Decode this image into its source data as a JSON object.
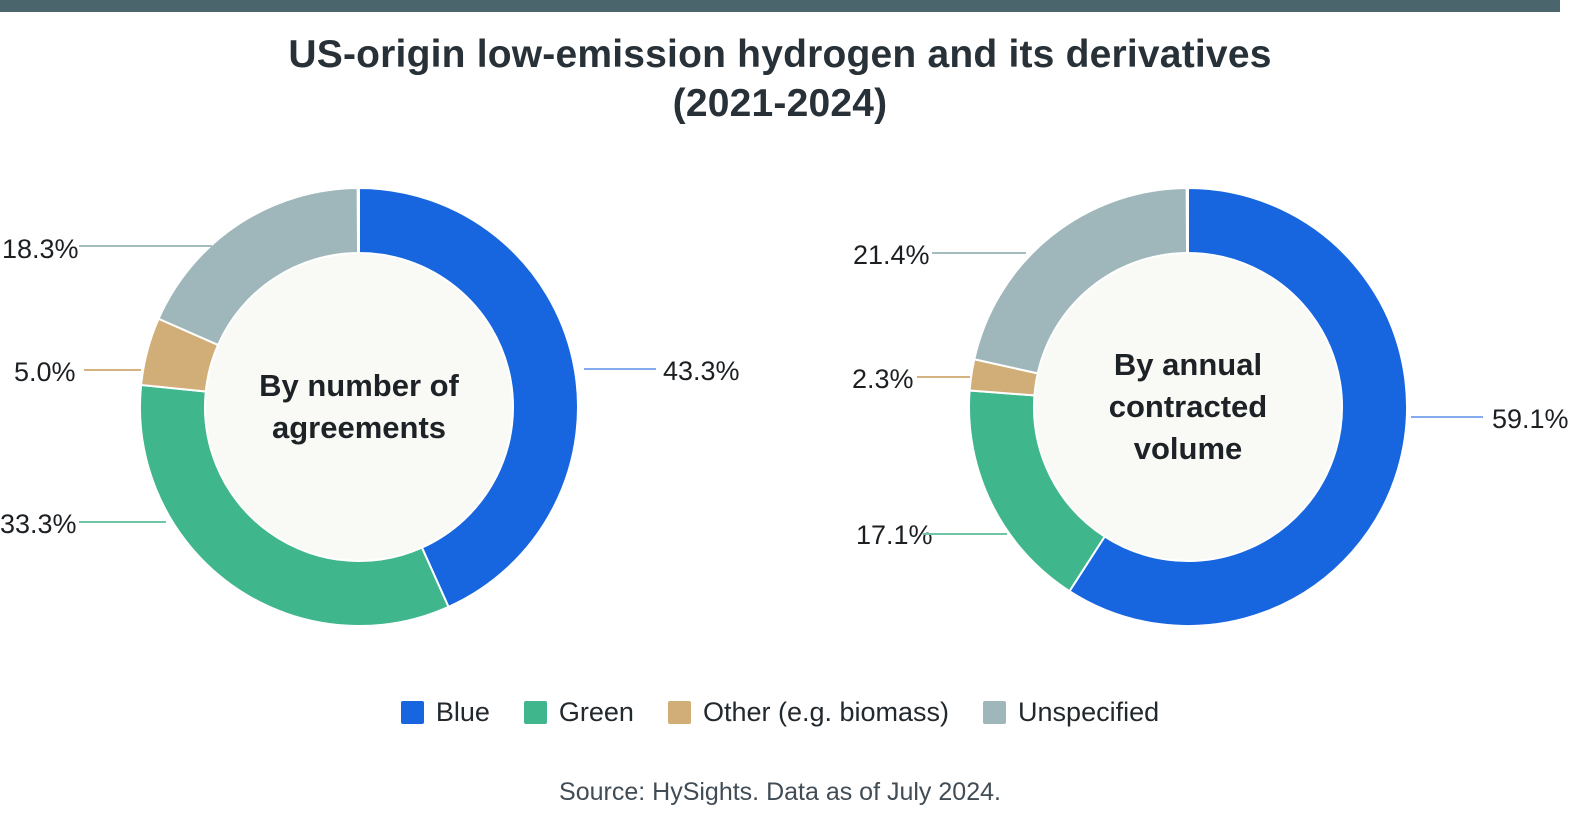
{
  "accent_bar": {
    "color": "#4b656d"
  },
  "title": {
    "line1": "US-origin low-emission hydrogen and its derivatives",
    "line2": "(2021-2024)"
  },
  "chart_data": [
    {
      "type": "pie",
      "style": "donut",
      "title": "By number of agreements",
      "center_label": "By number of agreements",
      "center_label_lines": [
        "By number of",
        "agreements"
      ],
      "categories": [
        "Blue",
        "Green",
        "Other (e.g. biomass)",
        "Unspecified"
      ],
      "values": [
        43.3,
        33.3,
        5.0,
        18.3
      ],
      "slice_labels": [
        "43.3%",
        "33.3%",
        "5.0%",
        "18.3%"
      ],
      "start_angle_deg": 0,
      "direction": "clockwise"
    },
    {
      "type": "pie",
      "style": "donut",
      "title": "By annual contracted volume",
      "center_label": "By annual contracted volume",
      "center_label_lines": [
        "By annual",
        "contracted",
        "volume"
      ],
      "categories": [
        "Blue",
        "Green",
        "Other (e.g. biomass)",
        "Unspecified"
      ],
      "values": [
        59.1,
        17.1,
        2.3,
        21.4
      ],
      "slice_labels": [
        "59.1%",
        "17.1%",
        "2.3%",
        "21.4%"
      ],
      "start_angle_deg": 0,
      "direction": "clockwise"
    }
  ],
  "palette": {
    "segment_keys": [
      "blue",
      "green",
      "other",
      "unspecified"
    ],
    "segment_colors": [
      "#1766df",
      "#3fb68b",
      "#d1ae77",
      "#9fb7ba"
    ],
    "leader_colors": [
      "#84a9ee",
      "#6fc6a4",
      "#d4b37e",
      "#a3bcbe"
    ],
    "hole_color": "#f9f9f5"
  },
  "legend": {
    "items": [
      {
        "label": "Blue"
      },
      {
        "label": "Green"
      },
      {
        "label": "Other (e.g. biomass)"
      },
      {
        "label": "Unspecified"
      }
    ]
  },
  "source": "Source: HySights. Data as of July 2024."
}
